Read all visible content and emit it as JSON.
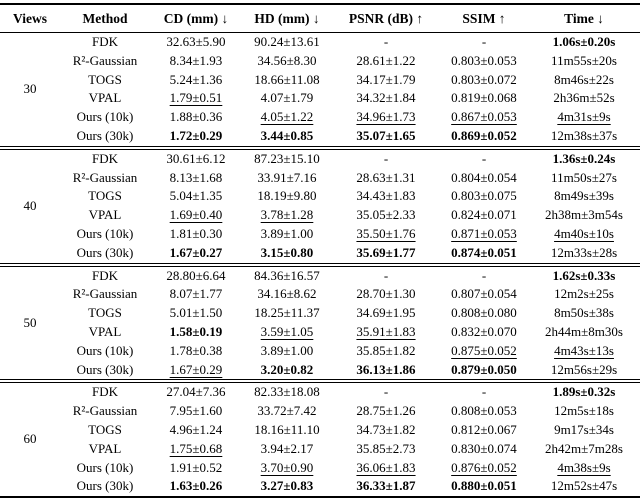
{
  "page": {
    "background_color": "#ffffff",
    "text_color": "#000000"
  },
  "table": {
    "headers": [
      "Views",
      "Method",
      "CD (mm) ↓",
      "HD (mm) ↓",
      "PSNR (dB) ↑",
      "SSIM ↑",
      "Time ↓"
    ],
    "groups": [
      {
        "views": "30",
        "rows": [
          {
            "method": "FDK",
            "cells": [
              {
                "t": "32.63±5.90",
                "s": ""
              },
              {
                "t": "90.24±13.61",
                "s": ""
              },
              {
                "t": "-",
                "s": ""
              },
              {
                "t": "-",
                "s": ""
              },
              {
                "t": "1.06s±0.20s",
                "s": "b"
              }
            ]
          },
          {
            "method": "R²-Gaussian",
            "cells": [
              {
                "t": "8.34±1.93",
                "s": ""
              },
              {
                "t": "34.56±8.30",
                "s": ""
              },
              {
                "t": "28.61±1.22",
                "s": ""
              },
              {
                "t": "0.803±0.053",
                "s": ""
              },
              {
                "t": "11m55s±20s",
                "s": ""
              }
            ]
          },
          {
            "method": "TOGS",
            "cells": [
              {
                "t": "5.24±1.36",
                "s": ""
              },
              {
                "t": "18.66±11.08",
                "s": ""
              },
              {
                "t": "34.17±1.79",
                "s": ""
              },
              {
                "t": "0.803±0.072",
                "s": ""
              },
              {
                "t": "8m46s±22s",
                "s": ""
              }
            ]
          },
          {
            "method": "VPAL",
            "cells": [
              {
                "t": "1.79±0.51",
                "s": "u"
              },
              {
                "t": "4.07±1.79",
                "s": ""
              },
              {
                "t": "34.32±1.84",
                "s": ""
              },
              {
                "t": "0.819±0.068",
                "s": ""
              },
              {
                "t": "2h36m±52s",
                "s": ""
              }
            ]
          },
          {
            "method": "Ours (10k)",
            "cells": [
              {
                "t": "1.88±0.36",
                "s": ""
              },
              {
                "t": "4.05±1.22",
                "s": "u"
              },
              {
                "t": "34.96±1.73",
                "s": "u"
              },
              {
                "t": "0.867±0.053",
                "s": "u"
              },
              {
                "t": "4m31s±9s",
                "s": "u"
              }
            ]
          },
          {
            "method": "Ours (30k)",
            "cells": [
              {
                "t": "1.72±0.29",
                "s": "b"
              },
              {
                "t": "3.44±0.85",
                "s": "b"
              },
              {
                "t": "35.07±1.65",
                "s": "b"
              },
              {
                "t": "0.869±0.052",
                "s": "b"
              },
              {
                "t": "12m38s±37s",
                "s": ""
              }
            ]
          }
        ]
      },
      {
        "views": "40",
        "rows": [
          {
            "method": "FDK",
            "cells": [
              {
                "t": "30.61±6.12",
                "s": ""
              },
              {
                "t": "87.23±15.10",
                "s": ""
              },
              {
                "t": "-",
                "s": ""
              },
              {
                "t": "-",
                "s": ""
              },
              {
                "t": "1.36s±0.24s",
                "s": "b"
              }
            ]
          },
          {
            "method": "R²-Gaussian",
            "cells": [
              {
                "t": "8.13±1.68",
                "s": ""
              },
              {
                "t": "33.91±7.16",
                "s": ""
              },
              {
                "t": "28.63±1.31",
                "s": ""
              },
              {
                "t": "0.804±0.054",
                "s": ""
              },
              {
                "t": "11m50s±27s",
                "s": ""
              }
            ]
          },
          {
            "method": "TOGS",
            "cells": [
              {
                "t": "5.04±1.35",
                "s": ""
              },
              {
                "t": "18.19±9.80",
                "s": ""
              },
              {
                "t": "34.43±1.83",
                "s": ""
              },
              {
                "t": "0.803±0.075",
                "s": ""
              },
              {
                "t": "8m49s±39s",
                "s": ""
              }
            ]
          },
          {
            "method": "VPAL",
            "cells": [
              {
                "t": "1.69±0.40",
                "s": "u"
              },
              {
                "t": "3.78±1.28",
                "s": "u"
              },
              {
                "t": "35.05±2.33",
                "s": ""
              },
              {
                "t": "0.824±0.071",
                "s": ""
              },
              {
                "t": "2h38m±3m54s",
                "s": ""
              }
            ]
          },
          {
            "method": "Ours (10k)",
            "cells": [
              {
                "t": "1.81±0.30",
                "s": ""
              },
              {
                "t": "3.89±1.00",
                "s": ""
              },
              {
                "t": "35.50±1.76",
                "s": "u"
              },
              {
                "t": "0.871±0.053",
                "s": "u"
              },
              {
                "t": "4m40s±10s",
                "s": "u"
              }
            ]
          },
          {
            "method": "Ours (30k)",
            "cells": [
              {
                "t": "1.67±0.27",
                "s": "b"
              },
              {
                "t": "3.15±0.80",
                "s": "b"
              },
              {
                "t": "35.69±1.77",
                "s": "b"
              },
              {
                "t": "0.874±0.051",
                "s": "b"
              },
              {
                "t": "12m33s±28s",
                "s": ""
              }
            ]
          }
        ]
      },
      {
        "views": "50",
        "rows": [
          {
            "method": "FDK",
            "cells": [
              {
                "t": "28.80±6.64",
                "s": ""
              },
              {
                "t": "84.36±16.57",
                "s": ""
              },
              {
                "t": "-",
                "s": ""
              },
              {
                "t": "-",
                "s": ""
              },
              {
                "t": "1.62s±0.33s",
                "s": "b"
              }
            ]
          },
          {
            "method": "R²-Gaussian",
            "cells": [
              {
                "t": "8.07±1.77",
                "s": ""
              },
              {
                "t": "34.16±8.62",
                "s": ""
              },
              {
                "t": "28.70±1.30",
                "s": ""
              },
              {
                "t": "0.807±0.054",
                "s": ""
              },
              {
                "t": "12m2s±25s",
                "s": ""
              }
            ]
          },
          {
            "method": "TOGS",
            "cells": [
              {
                "t": "5.01±1.50",
                "s": ""
              },
              {
                "t": "18.25±11.37",
                "s": ""
              },
              {
                "t": "34.69±1.95",
                "s": ""
              },
              {
                "t": "0.808±0.080",
                "s": ""
              },
              {
                "t": "8m50s±38s",
                "s": ""
              }
            ]
          },
          {
            "method": "VPAL",
            "cells": [
              {
                "t": "1.58±0.19",
                "s": "b"
              },
              {
                "t": "3.59±1.05",
                "s": "u"
              },
              {
                "t": "35.91±1.83",
                "s": "u"
              },
              {
                "t": "0.832±0.070",
                "s": ""
              },
              {
                "t": "2h44m±8m30s",
                "s": ""
              }
            ]
          },
          {
            "method": "Ours (10k)",
            "cells": [
              {
                "t": "1.78±0.38",
                "s": ""
              },
              {
                "t": "3.89±1.00",
                "s": ""
              },
              {
                "t": "35.85±1.82",
                "s": ""
              },
              {
                "t": "0.875±0.052",
                "s": "u"
              },
              {
                "t": "4m43s±13s",
                "s": "u"
              }
            ]
          },
          {
            "method": "Ours (30k)",
            "cells": [
              {
                "t": "1.67±0.29",
                "s": "u"
              },
              {
                "t": "3.20±0.82",
                "s": "b"
              },
              {
                "t": "36.13±1.86",
                "s": "b"
              },
              {
                "t": "0.879±0.050",
                "s": "b"
              },
              {
                "t": "12m56s±29s",
                "s": ""
              }
            ]
          }
        ]
      },
      {
        "views": "60",
        "rows": [
          {
            "method": "FDK",
            "cells": [
              {
                "t": "27.04±7.36",
                "s": ""
              },
              {
                "t": "82.33±18.08",
                "s": ""
              },
              {
                "t": "-",
                "s": ""
              },
              {
                "t": "-",
                "s": ""
              },
              {
                "t": "1.89s±0.32s",
                "s": "b"
              }
            ]
          },
          {
            "method": "R²-Gaussian",
            "cells": [
              {
                "t": "7.95±1.60",
                "s": ""
              },
              {
                "t": "33.72±7.42",
                "s": ""
              },
              {
                "t": "28.75±1.26",
                "s": ""
              },
              {
                "t": "0.808±0.053",
                "s": ""
              },
              {
                "t": "12m5s±18s",
                "s": ""
              }
            ]
          },
          {
            "method": "TOGS",
            "cells": [
              {
                "t": "4.96±1.24",
                "s": ""
              },
              {
                "t": "18.16±11.10",
                "s": ""
              },
              {
                "t": "34.73±1.82",
                "s": ""
              },
              {
                "t": "0.812±0.067",
                "s": ""
              },
              {
                "t": "9m17s±34s",
                "s": ""
              }
            ]
          },
          {
            "method": "VPAL",
            "cells": [
              {
                "t": "1.75±0.68",
                "s": "u"
              },
              {
                "t": "3.94±2.17",
                "s": ""
              },
              {
                "t": "35.85±2.73",
                "s": ""
              },
              {
                "t": "0.830±0.074",
                "s": ""
              },
              {
                "t": "2h42m±7m28s",
                "s": ""
              }
            ]
          },
          {
            "method": "Ours (10k)",
            "cells": [
              {
                "t": "1.91±0.52",
                "s": ""
              },
              {
                "t": "3.70±0.90",
                "s": "u"
              },
              {
                "t": "36.06±1.83",
                "s": "u"
              },
              {
                "t": "0.876±0.052",
                "s": "u"
              },
              {
                "t": "4m38s±9s",
                "s": "u"
              }
            ]
          },
          {
            "method": "Ours (30k)",
            "cells": [
              {
                "t": "1.63±0.26",
                "s": "b"
              },
              {
                "t": "3.27±0.83",
                "s": "b"
              },
              {
                "t": "36.33±1.87",
                "s": "b"
              },
              {
                "t": "0.880±0.051",
                "s": "b"
              },
              {
                "t": "12m52s±47s",
                "s": ""
              }
            ]
          }
        ]
      }
    ]
  }
}
